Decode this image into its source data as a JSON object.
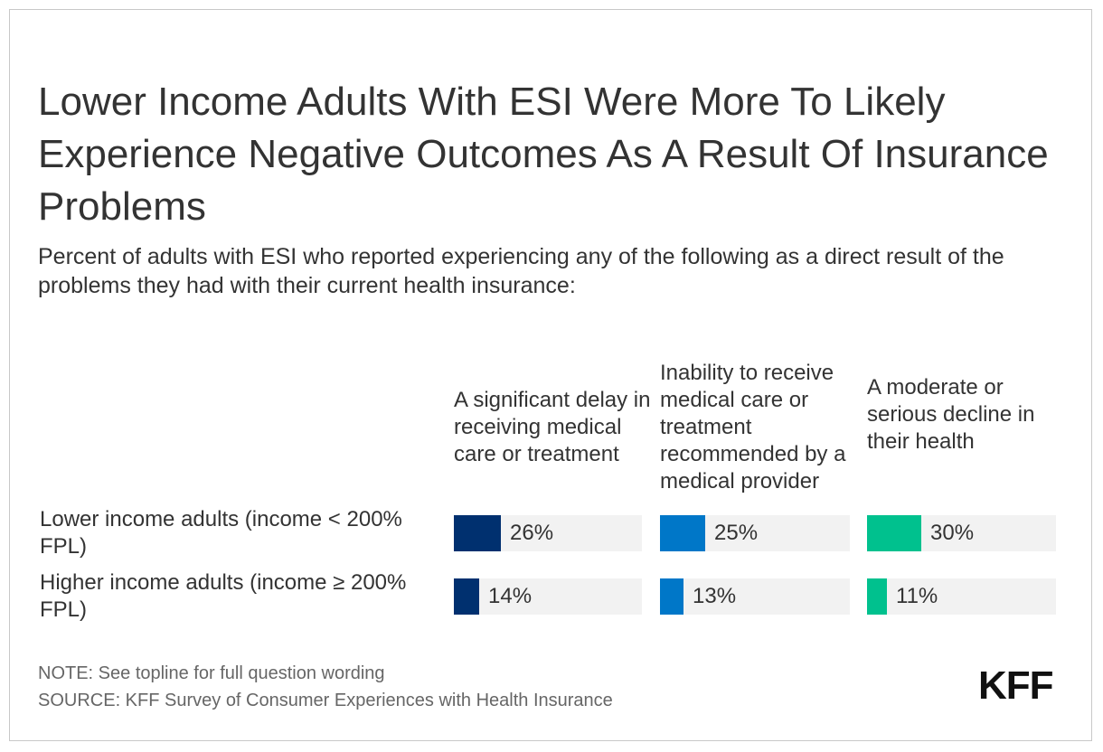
{
  "chart_data": {
    "type": "bar",
    "title": "Lower Income Adults With ESI Were More To Likely Experience Negative Outcomes As A Result Of Insurance Problems",
    "subtitle": "Percent of adults with ESI who reported experiencing any of the following as a direct result of the problems they had with their current health insurance:",
    "categories": [
      "A significant delay in receiving medical care or treatment",
      "Inability to receive medical care or treatment recommended by a medical provider",
      "A moderate or serious decline in their health"
    ],
    "rows": [
      "Lower income adults (income < 200% FPL)",
      "Higher income adults (income ≥ 200% FPL)"
    ],
    "series": [
      {
        "name": "Lower income adults (income < 200% FPL)",
        "values": [
          26,
          25,
          30
        ],
        "labels": [
          "26%",
          "25%",
          "30%"
        ]
      },
      {
        "name": "Higher income adults (income ≥ 200% FPL)",
        "values": [
          14,
          13,
          11
        ],
        "labels": [
          "14%",
          "13%",
          "11%"
        ]
      }
    ],
    "colors": [
      "#00306f",
      "#0077c8",
      "#00c18e"
    ],
    "ylim": [
      0,
      100
    ],
    "note": "NOTE: See topline for full question wording",
    "source": "SOURCE: KFF Survey of Consumer Experiences with Health Insurance"
  },
  "brand": {
    "logo_text": "KFF"
  }
}
